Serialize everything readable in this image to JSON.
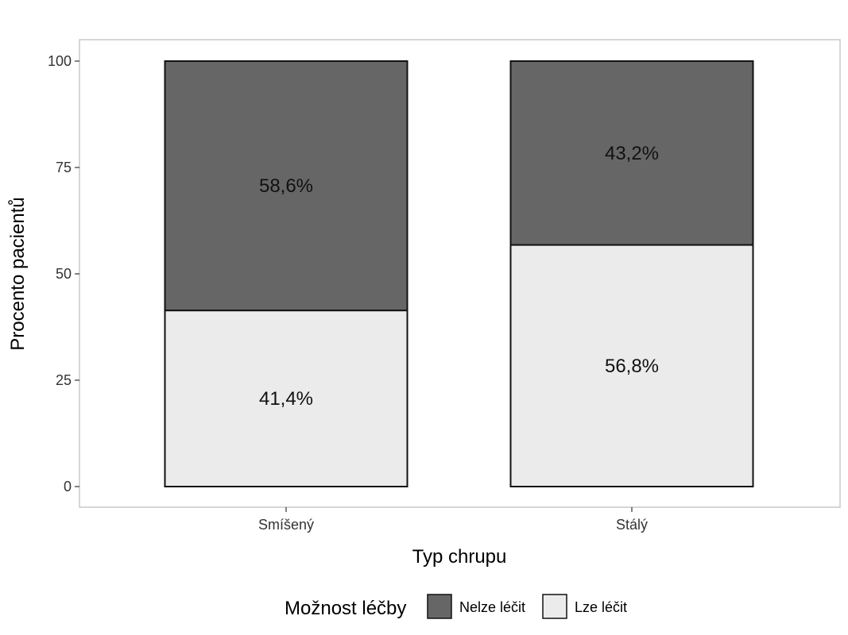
{
  "chart_data": {
    "type": "bar",
    "stacked": true,
    "categories": [
      "Smíšený",
      "Stálý"
    ],
    "series": [
      {
        "name": "Nelze léčit",
        "values": [
          58.6,
          43.2
        ],
        "labels": [
          "58,6%",
          "43,2%"
        ],
        "color": "#666666"
      },
      {
        "name": "Lze léčit",
        "values": [
          41.4,
          56.8
        ],
        "labels": [
          "41,4%",
          "56,8%"
        ],
        "color": "#ebebeb"
      }
    ],
    "xlabel": "Typ chrupu",
    "ylabel": "Procento pacientů",
    "ylim": [
      0,
      100
    ],
    "yticks": [
      "0",
      "25",
      "50",
      "75",
      "100"
    ],
    "legend": {
      "title": "Možnost léčby",
      "position": "bottom"
    },
    "grid": false
  }
}
